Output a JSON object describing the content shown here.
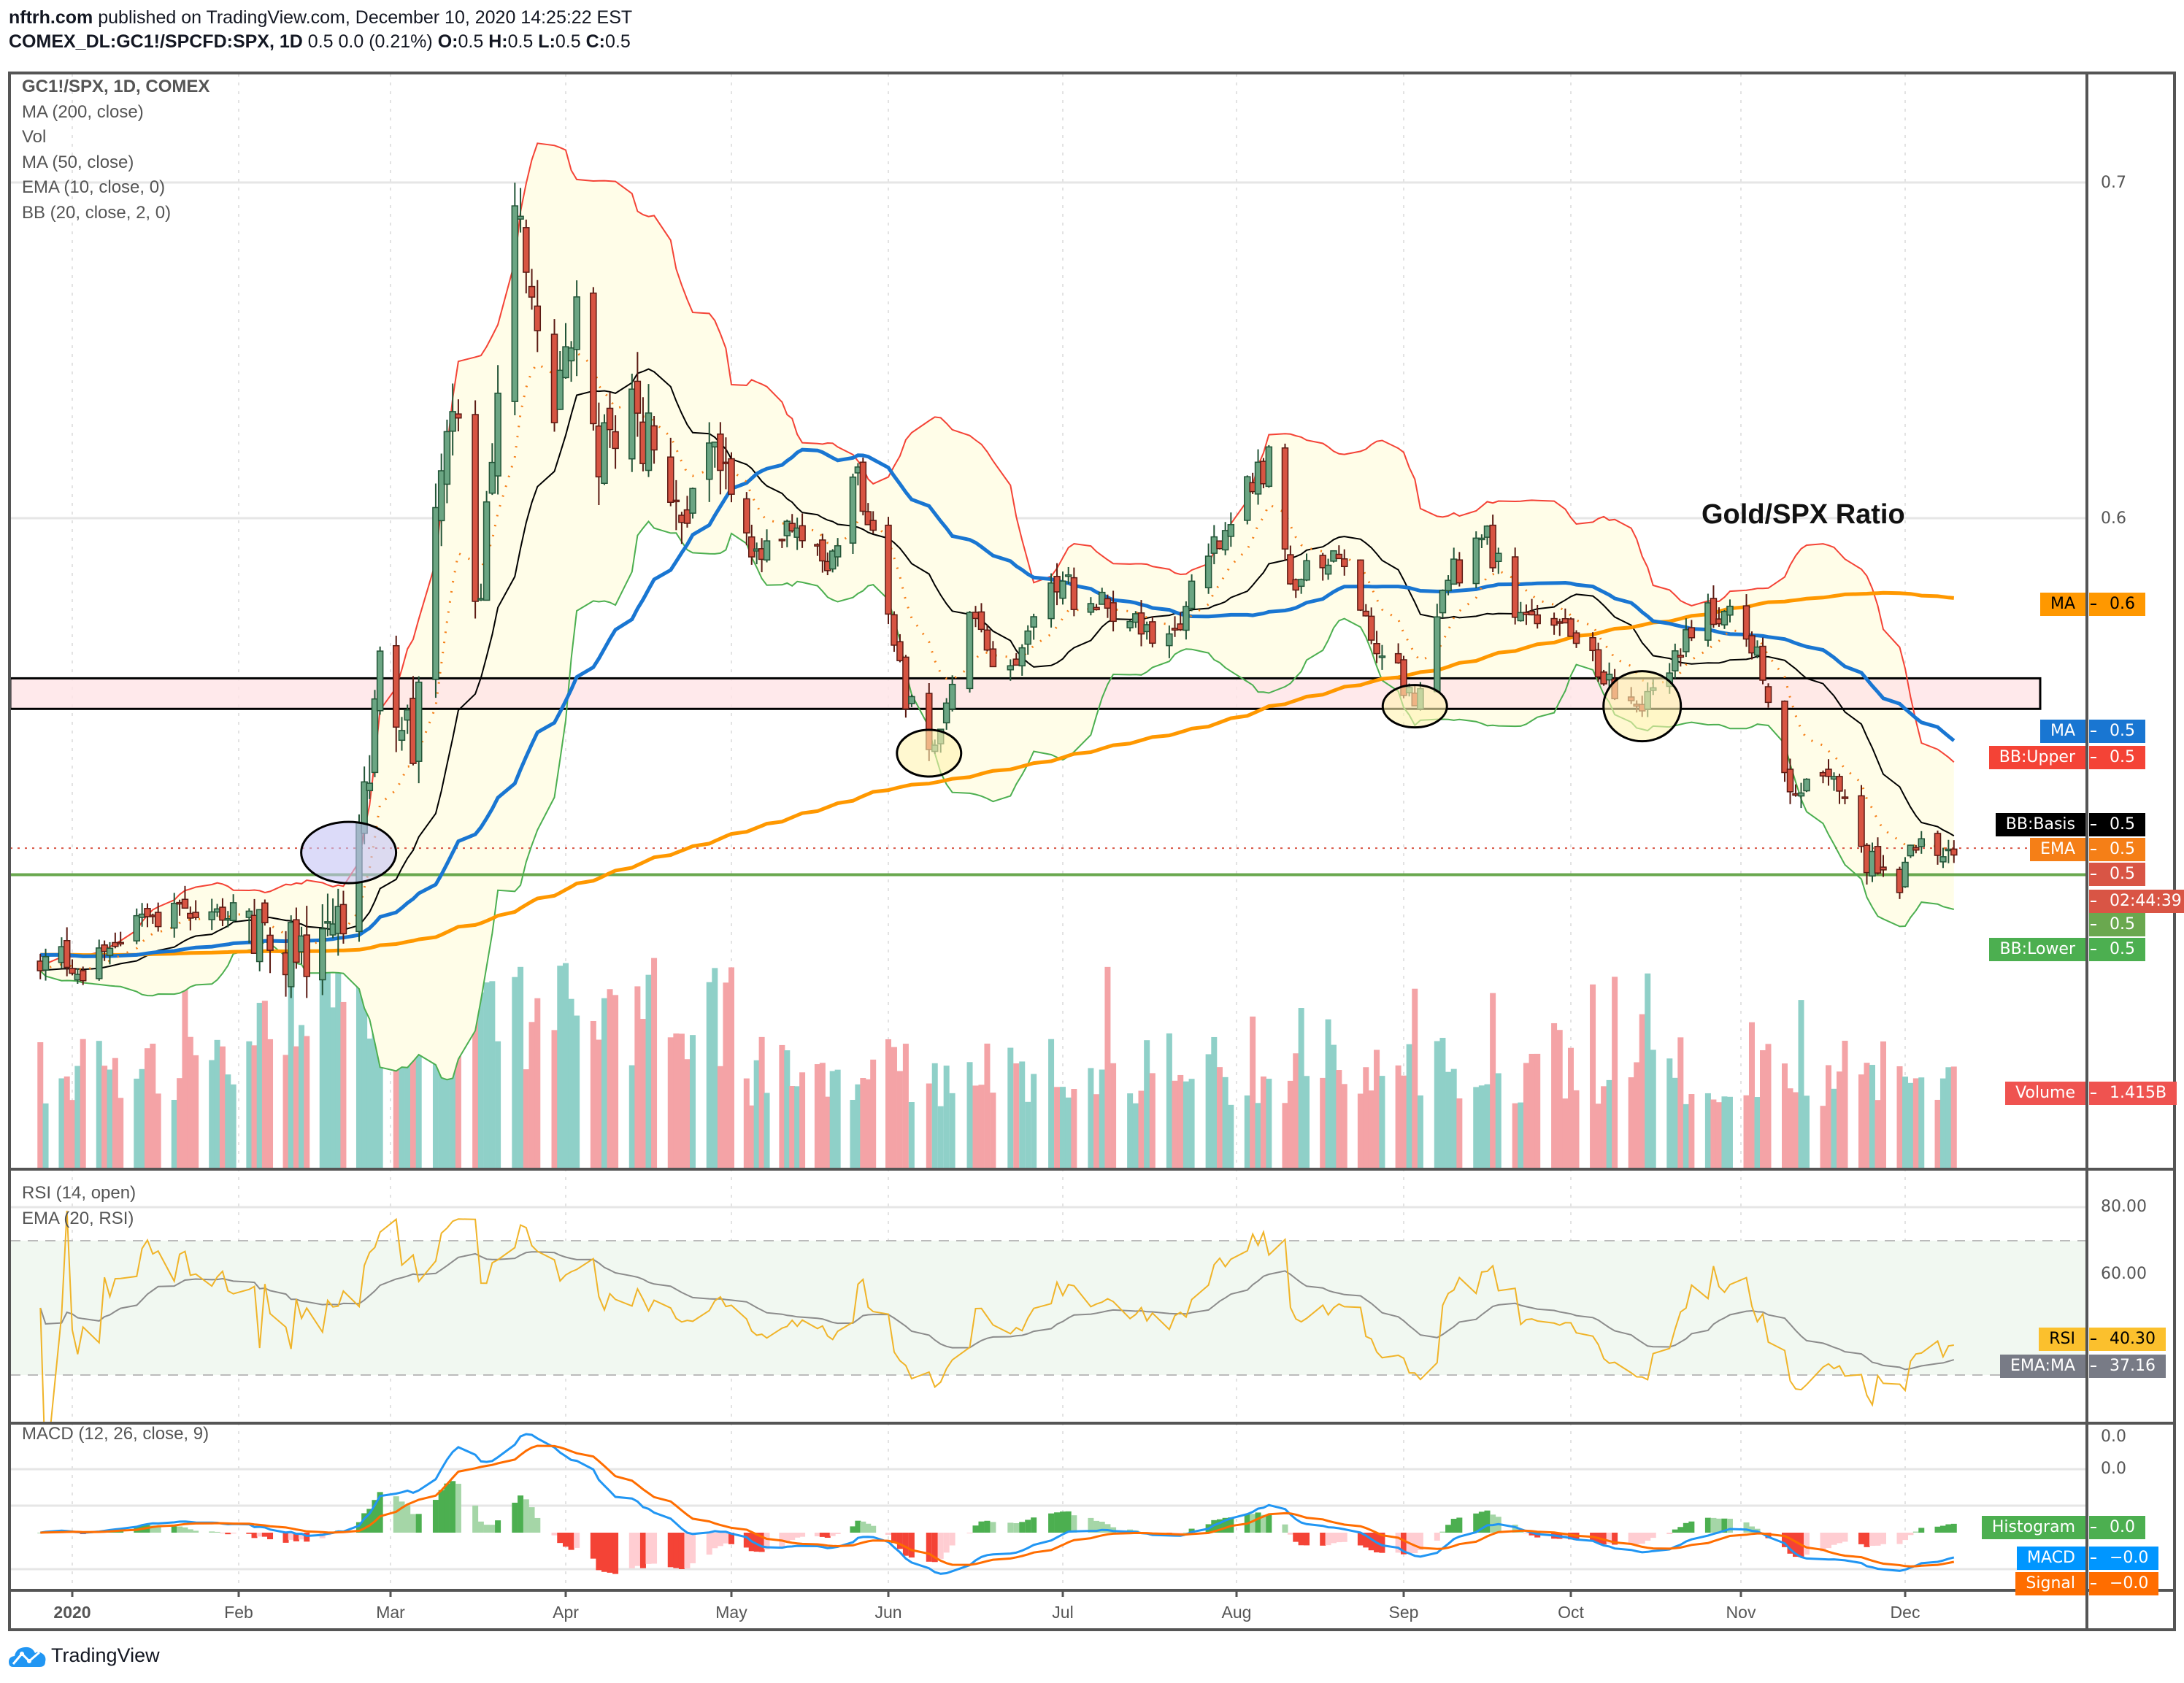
{
  "header": {
    "publisher": "nftrh.com",
    "published_text": "published on TradingView.com, December 10, 2020 14:25:22 EST",
    "symbol": "COMEX_DL:GC1!/SPCFD:SPX, 1D",
    "change": "0.5 0.0 (0.21%)",
    "o_label": "O:",
    "o_value": "0.5",
    "h_label": "H:",
    "h_value": "0.5",
    "l_label": "L:",
    "l_value": "0.5",
    "c_label": "C:",
    "c_value": "0.5"
  },
  "legend": {
    "main": [
      "GC1!/SPX, 1D, COMEX",
      "MA (200, close)",
      "Vol",
      "MA (50, close)",
      "EMA (10, close, 0)",
      "BB (20, close, 2, 0)"
    ],
    "rsi": [
      "RSI (14, open)",
      "EMA (20, RSI)"
    ],
    "macd": [
      "MACD (12, 26, close, 9)"
    ]
  },
  "annotation_text": "Gold/SPX Ratio",
  "price_axis": [
    "0.7",
    "0.6"
  ],
  "rsi_axis": [
    "80.00",
    "60.00"
  ],
  "macd_axis": [
    "0.0",
    "0.0"
  ],
  "time_axis": [
    "2020",
    "Feb",
    "Mar",
    "Apr",
    "May",
    "Jun",
    "Jul",
    "Aug",
    "Sep",
    "Oct",
    "Nov",
    "Dec"
  ],
  "price_labels": [
    {
      "name": "MA",
      "value": "0.6",
      "color": "#ff9800",
      "text": "#000000"
    },
    {
      "name": "MA",
      "value": "0.5",
      "color": "#1976d2",
      "text": "#ffffff"
    },
    {
      "name": "BB:Upper",
      "value": "0.5",
      "color": "#f44336",
      "text": "#ffffff"
    },
    {
      "name": "BB:Basis",
      "value": "0.5",
      "color": "#000000",
      "text": "#ffffff"
    },
    {
      "name": "EMA",
      "value": "0.5",
      "color": "#f57f17",
      "text": "#ffffff"
    },
    {
      "name": "",
      "value": "0.5",
      "color": "#d95545",
      "text": "#ffffff"
    },
    {
      "name": "",
      "value": "02:44:39",
      "color": "#d95545",
      "text": "#ffffff"
    },
    {
      "name": "",
      "value": "0.5",
      "color": "#6aa84f",
      "text": "#ffffff"
    },
    {
      "name": "BB:Lower",
      "value": "0.5",
      "color": "#4caf50",
      "text": "#ffffff"
    },
    {
      "name": "Volume",
      "value": "1.415B",
      "color": "#ef5350",
      "text": "#ffffff"
    },
    {
      "name": "RSI",
      "value": "40.30",
      "color": "#fbc02d",
      "text": "#000000"
    },
    {
      "name": "EMA:MA",
      "value": "37.16",
      "color": "#787b86",
      "text": "#ffffff"
    },
    {
      "name": "Histogram",
      "value": "0.0",
      "color": "#4caf50",
      "text": "#ffffff"
    },
    {
      "name": "MACD",
      "value": "−0.0",
      "color": "#0096ff",
      "text": "#ffffff"
    },
    {
      "name": "Signal",
      "value": "−0.0",
      "color": "#ff6d00",
      "text": "#ffffff"
    }
  ],
  "logo_text": "TradingView",
  "colors": {
    "up": "#6ba583",
    "down": "#d75442",
    "vol_up": "#8fd0c8",
    "vol_down": "#f4a3a6",
    "ma50": "#1976d2",
    "ma200": "#ff9800",
    "ema10": "#f57f17",
    "bb_upper": "#f44336",
    "bb_lower": "#4caf50",
    "bb_basis": "#000000",
    "bb_fill": "#fffde8",
    "zone_fill": "#ffe4e6",
    "support_line": "#6aa84f",
    "rsi": "#f0b429",
    "rsi_ema": "#8c8c8c",
    "macd": "#2196f3",
    "signal": "#ff6d00"
  },
  "chart_data": {
    "type": "candlestick",
    "symbol": "GC1!/SPX",
    "interval": "1D",
    "price_range": [
      0.44,
      0.72
    ],
    "grid": true,
    "price_path": [
      [
        "2019-12-26",
        0.47
      ],
      [
        "2020-01-02",
        0.466
      ],
      [
        "2020-01-15",
        0.48
      ],
      [
        "2020-02-01",
        0.485
      ],
      [
        "2020-02-10",
        0.468
      ],
      [
        "2020-02-20",
        0.476
      ],
      [
        "2020-02-24",
        0.505
      ],
      [
        "2020-02-28",
        0.551
      ],
      [
        "2020-03-05",
        0.534
      ],
      [
        "2020-03-09",
        0.605
      ],
      [
        "2020-03-12",
        0.638
      ],
      [
        "2020-03-16",
        0.572
      ],
      [
        "2020-03-20",
        0.63
      ],
      [
        "2020-03-23",
        0.696
      ],
      [
        "2020-03-25",
        0.663
      ],
      [
        "2020-03-30",
        0.634
      ],
      [
        "2020-04-03",
        0.655
      ],
      [
        "2020-04-07",
        0.617
      ],
      [
        "2020-04-14",
        0.63
      ],
      [
        "2020-04-21",
        0.597
      ],
      [
        "2020-04-28",
        0.617
      ],
      [
        "2020-05-05",
        0.588
      ],
      [
        "2020-05-12",
        0.597
      ],
      [
        "2020-05-20",
        0.584
      ],
      [
        "2020-05-26",
        0.613
      ],
      [
        "2020-06-01",
        0.572
      ],
      [
        "2020-06-04",
        0.547
      ],
      [
        "2020-06-08",
        0.53
      ],
      [
        "2020-06-15",
        0.568
      ],
      [
        "2020-06-22",
        0.555
      ],
      [
        "2020-06-29",
        0.58
      ],
      [
        "2020-07-06",
        0.576
      ],
      [
        "2020-07-20",
        0.563
      ],
      [
        "2020-07-27",
        0.588
      ],
      [
        "2020-08-03",
        0.609
      ],
      [
        "2020-08-07",
        0.617
      ],
      [
        "2020-08-11",
        0.58
      ],
      [
        "2020-08-20",
        0.588
      ],
      [
        "2020-08-27",
        0.563
      ],
      [
        "2020-09-03",
        0.547
      ],
      [
        "2020-09-08",
        0.58
      ],
      [
        "2020-09-16",
        0.593
      ],
      [
        "2020-09-21",
        0.572
      ],
      [
        "2020-10-01",
        0.563
      ],
      [
        "2020-10-08",
        0.551
      ],
      [
        "2020-10-13",
        0.543
      ],
      [
        "2020-10-20",
        0.559
      ],
      [
        "2020-10-27",
        0.572
      ],
      [
        "2020-11-02",
        0.568
      ],
      [
        "2020-11-06",
        0.547
      ],
      [
        "2020-11-09",
        0.522
      ],
      [
        "2020-11-16",
        0.522
      ],
      [
        "2020-11-20",
        0.518
      ],
      [
        "2020-11-24",
        0.497
      ],
      [
        "2020-11-30",
        0.491
      ],
      [
        "2020-12-03",
        0.501
      ],
      [
        "2020-12-10",
        0.503
      ]
    ],
    "last_volume": "1.415B",
    "indicators": [
      "MA 200",
      "MA 50",
      "EMA 10",
      "BB 20,2",
      "Volume",
      "RSI 14",
      "EMA 20 of RSI",
      "MACD 12,26,9"
    ],
    "rsi_bands": [
      30,
      70
    ],
    "drawings": {
      "resistance_zone": [
        0.5432,
        0.5523
      ],
      "support_line": 0.4938,
      "last_price_line": 0.5017,
      "circles": [
        {
          "date": "2020-02-22",
          "value": 0.5004,
          "color": "#c5c3f5"
        },
        {
          "date": "2020-06-08",
          "value": 0.53,
          "color": "#fff3b0"
        },
        {
          "date": "2020-09-03",
          "value": 0.544,
          "color": "#fff3b0"
        },
        {
          "date": "2020-10-14",
          "value": 0.544,
          "color": "#fff3b0"
        }
      ]
    }
  }
}
